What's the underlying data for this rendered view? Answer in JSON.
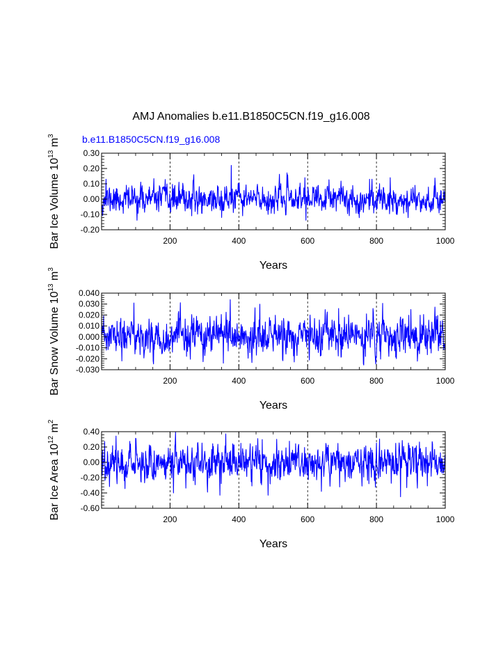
{
  "figure": {
    "title": "AMJ Anomalies b.e11.B1850C5CN.f19_g16.008",
    "case_label": "b.e11.B1850C5CN.f19_g16.008"
  },
  "colors": {
    "series": "#0000ff",
    "case_label": "#0000ff",
    "axis": "#000000",
    "grid": "#000000"
  },
  "chart_data": [
    {
      "type": "line",
      "title": "AMJ Anomalies b.e11.B1850C5CN.f19_g16.008",
      "xlabel": "Years",
      "ylabel": "Bar Ice Volume",
      "ylabel_unit": "10^13 m^3",
      "ylabel_exp": "13",
      "ylabel_unit_sym": "m",
      "ylabel_unit_exp": "3",
      "xlim": [
        1,
        1000
      ],
      "ylim": [
        -0.2,
        0.3
      ],
      "x_ticks": [
        200,
        400,
        600,
        800,
        1000
      ],
      "x_tick_labels": [
        "200",
        "400",
        "600",
        "800",
        "1000"
      ],
      "y_ticks": [
        -0.2,
        -0.1,
        0.0,
        0.1,
        0.2,
        0.3
      ],
      "y_tick_labels": [
        "-0.20",
        "-0.10",
        "0.00",
        "0.10",
        "0.20",
        "0.30"
      ],
      "grid_x": [
        200,
        400,
        600,
        800
      ],
      "series": [
        {
          "name": "b.e11.B1850C5CN.f19_g16.008",
          "generator": {
            "seed": 11,
            "sigma": 0.045,
            "ar": 0.35,
            "mean": 0.0
          },
          "peaks": [
            [
              14,
              0.13
            ],
            [
              378,
              0.22
            ],
            [
              350,
              -0.12
            ],
            [
              485,
              -0.1
            ],
            [
              592,
              0.14
            ],
            [
              780,
              0.13
            ],
            [
              840,
              0.14
            ]
          ]
        }
      ]
    },
    {
      "type": "line",
      "title": "",
      "xlabel": "Years",
      "ylabel": "Bar Snow Volume",
      "ylabel_unit": "10^13 m^3",
      "ylabel_exp": "13",
      "ylabel_unit_sym": "m",
      "ylabel_unit_exp": "3",
      "xlim": [
        1,
        1000
      ],
      "ylim": [
        -0.03,
        0.04
      ],
      "x_ticks": [
        200,
        400,
        600,
        800,
        1000
      ],
      "x_tick_labels": [
        "200",
        "400",
        "600",
        "800",
        "1000"
      ],
      "y_ticks": [
        -0.03,
        -0.02,
        -0.01,
        0.0,
        0.01,
        0.02,
        0.03,
        0.04
      ],
      "y_tick_labels": [
        "-0.030",
        "-0.020",
        "-0.010",
        "0.000",
        "0.010",
        "0.020",
        "0.030",
        "0.040"
      ],
      "grid_x": [
        200,
        400,
        600,
        800
      ],
      "series": [
        {
          "name": "b.e11.B1850C5CN.f19_g16.008",
          "generator": {
            "seed": 23,
            "sigma": 0.0085,
            "ar": 0.3,
            "mean": 0.0
          },
          "peaks": [
            [
              95,
              0.031
            ],
            [
              375,
              0.034
            ],
            [
              355,
              -0.024
            ],
            [
              690,
              0.026
            ],
            [
              790,
              0.026
            ],
            [
              900,
              0.025
            ],
            [
              60,
              -0.022
            ]
          ]
        }
      ]
    },
    {
      "type": "line",
      "title": "",
      "xlabel": "Years",
      "ylabel": "Bar Ice Area",
      "ylabel_unit": "10^12 m^2",
      "ylabel_exp": "12",
      "ylabel_unit_sym": "m",
      "ylabel_unit_exp": "2",
      "xlim": [
        1,
        1000
      ],
      "ylim": [
        -0.6,
        0.4
      ],
      "x_ticks": [
        200,
        400,
        600,
        800,
        1000
      ],
      "x_tick_labels": [
        "200",
        "400",
        "600",
        "800",
        "1000"
      ],
      "y_ticks": [
        -0.6,
        -0.4,
        -0.2,
        0.0,
        0.2,
        0.4
      ],
      "y_tick_labels": [
        "-0.60",
        "-0.40",
        "-0.20",
        "0.00",
        "0.20",
        "0.40"
      ],
      "grid_x": [
        200,
        400,
        600,
        800
      ],
      "series": [
        {
          "name": "b.e11.B1850C5CN.f19_g16.008",
          "generator": {
            "seed": 37,
            "sigma": 0.12,
            "ar": 0.3,
            "mean": 0.0
          },
          "peaks": [
            [
              10,
              0.27
            ],
            [
              455,
              0.31
            ],
            [
              345,
              -0.43
            ],
            [
              485,
              -0.43
            ],
            [
              870,
              -0.45
            ],
            [
              640,
              -0.38
            ],
            [
              210,
              -0.4
            ]
          ]
        }
      ]
    }
  ]
}
